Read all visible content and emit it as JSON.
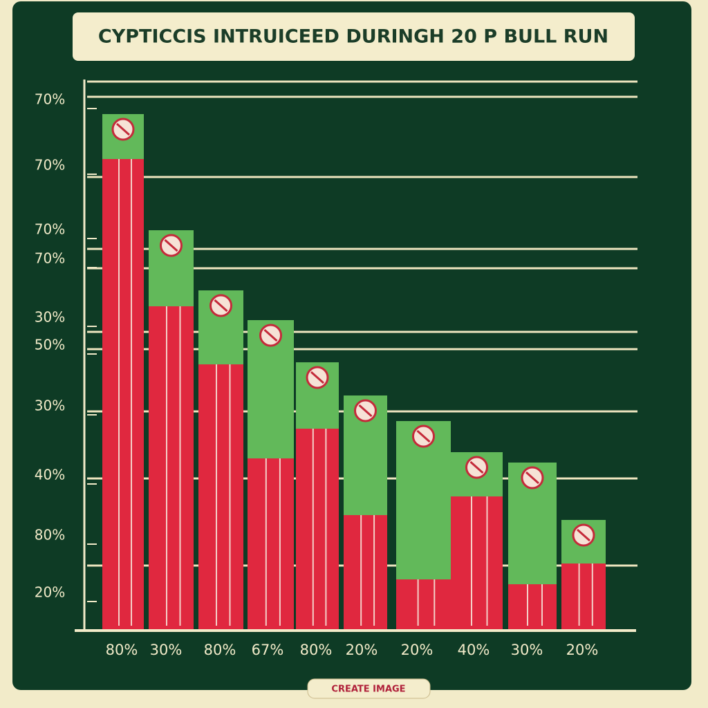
{
  "title": "CYPTICCIS INTRUICEED DURINGH 20 P BULL RUN",
  "y_labels": [
    "70%",
    "70%",
    "70%",
    "70%",
    "30%",
    "50%",
    "30%",
    "40%",
    "80%",
    "20%"
  ],
  "x_labels": [
    "80%",
    "30%",
    "80%",
    "67%",
    "80%",
    "20%",
    "20%",
    "40%",
    "30%",
    "20%"
  ],
  "button": "CREATE IMAGE"
}
